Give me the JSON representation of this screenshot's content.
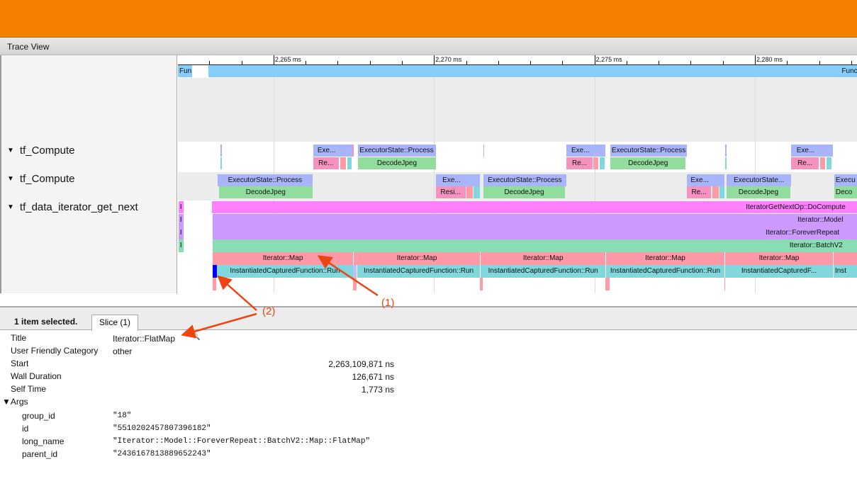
{
  "window": {
    "title": "Trace View",
    "accent": "#f77f00"
  },
  "tracks": [
    {
      "label": "tf_Compute",
      "expanded": true
    },
    {
      "label": "tf_Compute",
      "expanded": true
    },
    {
      "label": "tf_data_iterator_get_next",
      "expanded": true
    }
  ],
  "timeline": {
    "view_ms": [
      2262.02,
      2283.18
    ],
    "ticks": [
      {
        "ms": 2265,
        "label": "2,265 ms"
      },
      {
        "ms": 2270,
        "label": "2,270 ms"
      },
      {
        "ms": 2275,
        "label": "2,275 ms"
      },
      {
        "ms": 2280,
        "label": "2,280 ms"
      }
    ],
    "minor_tick_ms": 1
  },
  "colors": {
    "fun": "#87cefa",
    "exec": "#a9b5fb",
    "re": "#f592c0",
    "salmon": "#ff9ba4",
    "cyan": "#80d8dc",
    "decode": "#91dd9c",
    "magenta": "#ff80ff",
    "purple": "#cc99ff",
    "batch": "#88ddb3",
    "map": "#ff99a8",
    "sel": "#0000ee",
    "lav": "#b8c0ff"
  },
  "slices": [
    {
      "row": "fun",
      "lane": 0,
      "s": 2262.02,
      "e": 2262.46,
      "label": "Fun",
      "c": "fun",
      "al": "l"
    },
    {
      "row": "fun",
      "lane": 0,
      "s": 2262.97,
      "e": 2284,
      "label": "FunctionRun",
      "c": "fun",
      "al": "r"
    },
    {
      "row": "c1",
      "lane": 0,
      "s": 2263.35,
      "e": 2263.38,
      "label": "",
      "c": "exec"
    },
    {
      "row": "c1",
      "lane": 1,
      "s": 2263.35,
      "e": 2263.38,
      "label": "",
      "c": "cyan"
    },
    {
      "row": "c1",
      "lane": 0,
      "s": 2266.23,
      "e": 2267.07,
      "label": "Exe...",
      "c": "exec"
    },
    {
      "row": "c1",
      "lane": 0,
      "s": 2267.07,
      "e": 2267.45,
      "label": "",
      "c": "exec"
    },
    {
      "row": "c1",
      "lane": 0,
      "s": 2267.45,
      "e": 2267.49,
      "label": "",
      "c": "re"
    },
    {
      "row": "c1",
      "lane": 0,
      "s": 2267.62,
      "e": 2270.05,
      "label": "ExecutorState::Process",
      "c": "exec"
    },
    {
      "row": "c1",
      "lane": 1,
      "s": 2266.23,
      "e": 2267.03,
      "label": "Re...",
      "c": "re"
    },
    {
      "row": "c1",
      "lane": 1,
      "s": 2267.07,
      "e": 2267.25,
      "label": "",
      "c": "salmon"
    },
    {
      "row": "c1",
      "lane": 1,
      "s": 2267.29,
      "e": 2267.43,
      "label": "",
      "c": "cyan"
    },
    {
      "row": "c1",
      "lane": 1,
      "s": 2267.64,
      "e": 2270.05,
      "label": "DecodeJpeg",
      "c": "decode"
    },
    {
      "row": "c1",
      "lane": 0,
      "s": 2271.53,
      "e": 2271.56,
      "label": "",
      "c": "exec"
    },
    {
      "row": "c1",
      "lane": 0,
      "s": 2274.13,
      "e": 2274.99,
      "label": "Exe...",
      "c": "exec"
    },
    {
      "row": "c1",
      "lane": 0,
      "s": 2274.99,
      "e": 2275.34,
      "label": "",
      "c": "exec"
    },
    {
      "row": "c1",
      "lane": 0,
      "s": 2275.5,
      "e": 2277.88,
      "label": "ExecutorState::Process",
      "c": "exec"
    },
    {
      "row": "c1",
      "lane": 1,
      "s": 2274.13,
      "e": 2274.94,
      "label": "Re...",
      "c": "re"
    },
    {
      "row": "c1",
      "lane": 1,
      "s": 2274.97,
      "e": 2275.12,
      "label": "",
      "c": "salmon"
    },
    {
      "row": "c1",
      "lane": 1,
      "s": 2275.16,
      "e": 2275.32,
      "label": "",
      "c": "cyan"
    },
    {
      "row": "c1",
      "lane": 1,
      "s": 2275.5,
      "e": 2277.84,
      "label": "DecodeJpeg",
      "c": "decode"
    },
    {
      "row": "c1",
      "lane": 0,
      "s": 2279.08,
      "e": 2279.12,
      "label": "",
      "c": "exec"
    },
    {
      "row": "c1",
      "lane": 1,
      "s": 2279.08,
      "e": 2279.12,
      "label": "",
      "c": "cyan"
    },
    {
      "row": "c1",
      "lane": 0,
      "s": 2281.13,
      "e": 2282.03,
      "label": "Exe...",
      "c": "exec"
    },
    {
      "row": "c1",
      "lane": 0,
      "s": 2282.03,
      "e": 2282.43,
      "label": "",
      "c": "exec"
    },
    {
      "row": "c1",
      "lane": 1,
      "s": 2281.13,
      "e": 2281.99,
      "label": "Re...",
      "c": "re"
    },
    {
      "row": "c1",
      "lane": 1,
      "s": 2282.03,
      "e": 2282.19,
      "label": "",
      "c": "salmon"
    },
    {
      "row": "c1",
      "lane": 1,
      "s": 2282.23,
      "e": 2282.38,
      "label": "",
      "c": "cyan"
    },
    {
      "row": "c2",
      "lane": 0,
      "s": 2263.26,
      "e": 2266.21,
      "label": "ExecutorState::Process",
      "c": "exec"
    },
    {
      "row": "c2",
      "lane": 1,
      "s": 2263.3,
      "e": 2266.21,
      "label": "DecodeJpeg",
      "c": "decode"
    },
    {
      "row": "c2",
      "lane": 0,
      "s": 2270.05,
      "e": 2271.04,
      "label": "Exe...",
      "c": "exec"
    },
    {
      "row": "c2",
      "lane": 0,
      "s": 2271.04,
      "e": 2271.44,
      "label": "",
      "c": "exec"
    },
    {
      "row": "c2",
      "lane": 0,
      "s": 2271.53,
      "e": 2274.13,
      "label": "ExecutorState::Process",
      "c": "exec"
    },
    {
      "row": "c2",
      "lane": 1,
      "s": 2270.05,
      "e": 2270.98,
      "label": "Resi...",
      "c": "re"
    },
    {
      "row": "c2",
      "lane": 1,
      "s": 2271.0,
      "e": 2271.2,
      "label": "",
      "c": "salmon"
    },
    {
      "row": "c2",
      "lane": 1,
      "s": 2271.24,
      "e": 2271.42,
      "label": "",
      "c": "cyan"
    },
    {
      "row": "c2",
      "lane": 1,
      "s": 2271.53,
      "e": 2274.09,
      "label": "DecodeJpeg",
      "c": "decode"
    },
    {
      "row": "c2",
      "lane": 0,
      "s": 2277.88,
      "e": 2278.68,
      "label": "Exe...",
      "c": "exec"
    },
    {
      "row": "c2",
      "lane": 0,
      "s": 2278.68,
      "e": 2279.05,
      "label": "",
      "c": "exec"
    },
    {
      "row": "c2",
      "lane": 0,
      "s": 2279.12,
      "e": 2281.13,
      "label": "ExecutorState...",
      "c": "exec"
    },
    {
      "row": "c2",
      "lane": 1,
      "s": 2277.88,
      "e": 2278.63,
      "label": "Re...",
      "c": "re"
    },
    {
      "row": "c2",
      "lane": 1,
      "s": 2278.68,
      "e": 2278.87,
      "label": "",
      "c": "salmon"
    },
    {
      "row": "c2",
      "lane": 1,
      "s": 2278.9,
      "e": 2279.05,
      "label": "",
      "c": "cyan"
    },
    {
      "row": "c2",
      "lane": 1,
      "s": 2279.12,
      "e": 2281.1,
      "label": "DecodeJpeg",
      "c": "decode"
    },
    {
      "row": "c2",
      "lane": 0,
      "s": 2282.47,
      "e": 2284,
      "label": "Execu",
      "c": "exec",
      "al": "l"
    },
    {
      "row": "c2",
      "lane": 1,
      "s": 2282.47,
      "e": 2284,
      "label": "Deco",
      "c": "decode",
      "al": "l"
    },
    {
      "row": "it",
      "lane": 0,
      "s": 2262.04,
      "e": 2262.2,
      "label": "I",
      "c": "magenta",
      "al": "l"
    },
    {
      "row": "it",
      "lane": 1,
      "s": 2262.04,
      "e": 2262.2,
      "label": "I",
      "c": "purple",
      "al": "l"
    },
    {
      "row": "it",
      "lane": 2,
      "s": 2262.04,
      "e": 2262.2,
      "label": "I",
      "c": "purple",
      "al": "l"
    },
    {
      "row": "it",
      "lane": 3,
      "s": 2262.04,
      "e": 2262.2,
      "label": "I",
      "c": "batch",
      "al": "l"
    },
    {
      "row": "it",
      "lane": 0,
      "s": 2263.08,
      "e": 2284,
      "label": "IteratorGetNextOp::DoCompute",
      "c": "magenta",
      "al": "clip"
    },
    {
      "row": "it",
      "lane": 1,
      "s": 2263.11,
      "e": 2284,
      "label": "Iterator::Model",
      "c": "purple",
      "al": "clip"
    },
    {
      "row": "it",
      "lane": 2,
      "s": 2263.11,
      "e": 2284,
      "label": "Iterator::ForeverRepeat",
      "c": "purple",
      "al": "clip"
    },
    {
      "row": "it",
      "lane": 3,
      "s": 2263.11,
      "e": 2284,
      "label": "Iterator::BatchV2",
      "c": "batch",
      "al": "clip"
    },
    {
      "row": "it",
      "lane": 4,
      "s": 2263.11,
      "e": 2267.47,
      "label": "Iterator::Map",
      "c": "map"
    },
    {
      "row": "it",
      "lane": 4,
      "s": 2267.49,
      "e": 2271.44,
      "label": "Iterator::Map",
      "c": "map"
    },
    {
      "row": "it",
      "lane": 4,
      "s": 2271.46,
      "e": 2275.34,
      "label": "Iterator::Map",
      "c": "map"
    },
    {
      "row": "it",
      "lane": 4,
      "s": 2275.36,
      "e": 2279.05,
      "label": "Iterator::Map",
      "c": "map"
    },
    {
      "row": "it",
      "lane": 4,
      "s": 2279.07,
      "e": 2282.43,
      "label": "Iterator::Map",
      "c": "map"
    },
    {
      "row": "it",
      "lane": 4,
      "s": 2282.45,
      "e": 2284,
      "label": "",
      "c": "map"
    },
    {
      "row": "it",
      "lane": 5,
      "s": 2263.11,
      "e": 2263.24,
      "label": "",
      "c": "sel"
    },
    {
      "row": "it",
      "lane": 5,
      "s": 2263.24,
      "e": 2267.47,
      "label": "InstantiatedCapturedFunction::Run",
      "c": "cyan"
    },
    {
      "row": "it",
      "lane": 5,
      "s": 2267.47,
      "e": 2267.58,
      "label": "",
      "c": "lav"
    },
    {
      "row": "it",
      "lane": 5,
      "s": 2267.6,
      "e": 2271.44,
      "label": "InstantiatedCapturedFunction::Run",
      "c": "cyan"
    },
    {
      "row": "it",
      "lane": 5,
      "s": 2271.46,
      "e": 2275.34,
      "label": "InstantiatedCapturedFunction::Run",
      "c": "cyan"
    },
    {
      "row": "it",
      "lane": 5,
      "s": 2275.36,
      "e": 2279.05,
      "label": "InstantiatedCapturedFunction::Run",
      "c": "cyan"
    },
    {
      "row": "it",
      "lane": 5,
      "s": 2279.07,
      "e": 2282.43,
      "label": "InstantiatedCapturedF...",
      "c": "cyan"
    },
    {
      "row": "it",
      "lane": 5,
      "s": 2282.45,
      "e": 2284,
      "label": "Inst",
      "c": "cyan",
      "al": "l"
    },
    {
      "row": "it",
      "lane": 6,
      "s": 2263.11,
      "e": 2263.22,
      "label": "",
      "c": "salmon"
    },
    {
      "row": "it",
      "lane": 6,
      "s": 2267.47,
      "e": 2267.58,
      "label": "",
      "c": "salmon"
    },
    {
      "row": "it",
      "lane": 6,
      "s": 2271.44,
      "e": 2271.51,
      "label": "",
      "c": "salmon"
    },
    {
      "row": "it",
      "lane": 6,
      "s": 2275.34,
      "e": 2275.48,
      "label": "",
      "c": "salmon"
    },
    {
      "row": "it",
      "lane": 6,
      "s": 2279.05,
      "e": 2279.08,
      "label": "",
      "c": "salmon"
    }
  ],
  "details": {
    "selected_count": "1 item selected.",
    "tab": "Slice (1)",
    "rows": [
      {
        "key": "Title",
        "value": "Iterator::FlatMap"
      },
      {
        "key": "User Friendly Category",
        "value": "other"
      },
      {
        "key": "Start",
        "value": "2,263,109,871 ns"
      },
      {
        "key": "Wall Duration",
        "value": "126,671 ns"
      },
      {
        "key": "Self Time",
        "value": "1,773 ns"
      }
    ],
    "args_label": "▼Args",
    "args": [
      {
        "key": "group_id",
        "value": "\"18\""
      },
      {
        "key": "id",
        "value": "\"5510202457807396182\""
      },
      {
        "key": "long_name",
        "value": "\"Iterator::Model::ForeverRepeat::BatchV2::Map::FlatMap\""
      },
      {
        "key": "parent_id",
        "value": "\"2436167813889652243\""
      }
    ]
  },
  "annotations": [
    {
      "label": "(1)"
    },
    {
      "label": "(2)"
    }
  ]
}
